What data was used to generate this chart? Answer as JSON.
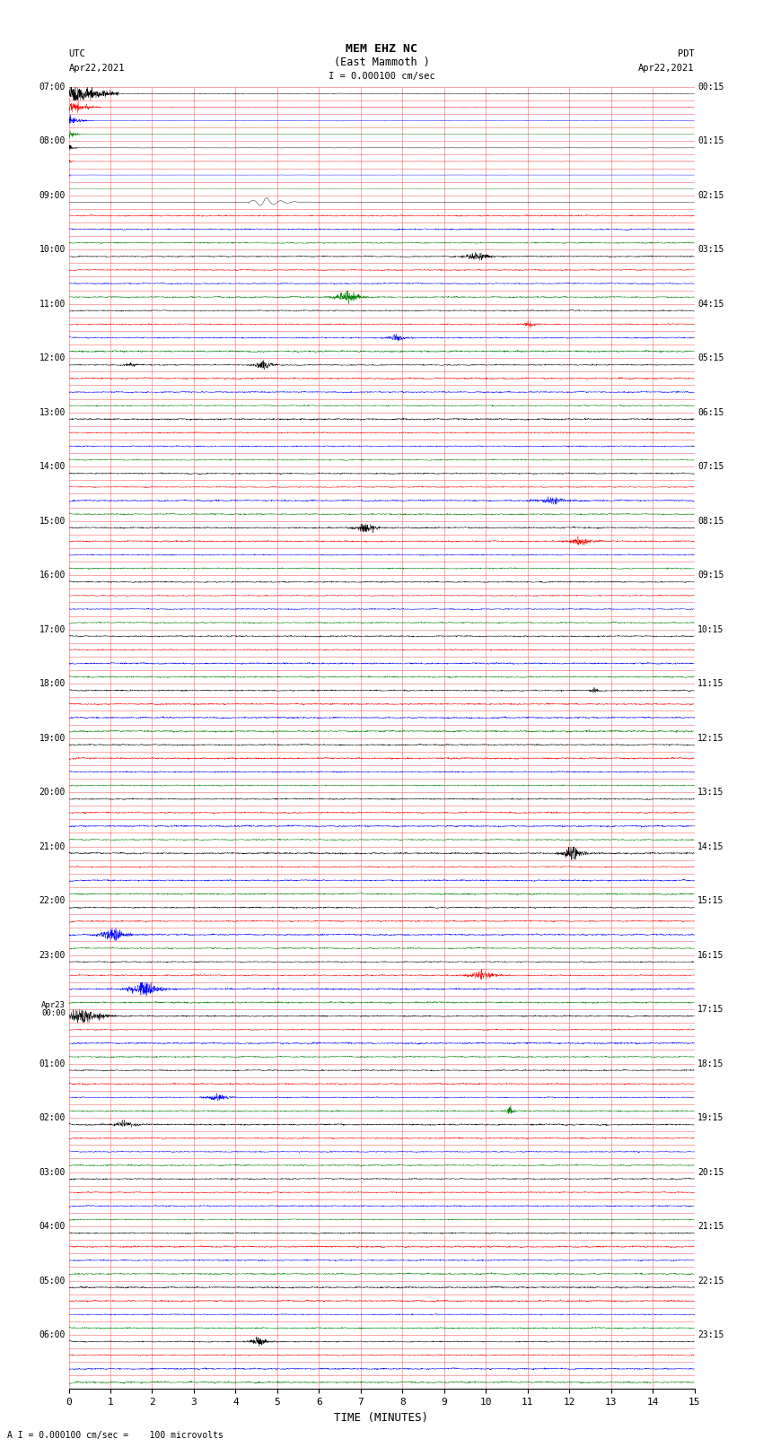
{
  "title_line1": "MEM EHZ NC",
  "title_line2": "(East Mammoth )",
  "scale_label": "I = 0.000100 cm/sec",
  "bottom_label": "A I = 0.000100 cm/sec =    100 microvolts",
  "xlabel": "TIME (MINUTES)",
  "utc_header1": "UTC",
  "utc_header2": "Apr22,2021",
  "pdt_header1": "PDT",
  "pdt_header2": "Apr22,2021",
  "num_rows": 96,
  "colors_cycle": [
    "#000000",
    "#ff0000",
    "#0000ff",
    "#008000"
  ],
  "background_color": "#ffffff",
  "grid_color": "#ff0000",
  "figsize": [
    8.5,
    16.13
  ],
  "dpi": 100,
  "xlim": [
    0,
    15
  ],
  "xticks": [
    0,
    1,
    2,
    3,
    4,
    5,
    6,
    7,
    8,
    9,
    10,
    11,
    12,
    13,
    14,
    15
  ],
  "noise_base": 0.06,
  "left_label_rows": [
    0,
    4,
    8,
    12,
    16,
    20,
    24,
    28,
    32,
    36,
    40,
    44,
    48,
    52,
    56,
    60,
    64,
    68,
    72,
    76,
    80,
    84,
    88,
    92
  ],
  "left_label_texts": [
    "07:00",
    "08:00",
    "09:00",
    "10:00",
    "11:00",
    "12:00",
    "13:00",
    "14:00",
    "15:00",
    "16:00",
    "17:00",
    "18:00",
    "19:00",
    "20:00",
    "21:00",
    "22:00",
    "23:00",
    "Apr23\n00:00",
    "01:00",
    "02:00",
    "03:00",
    "04:00",
    "05:00",
    "06:00"
  ],
  "right_label_rows": [
    0,
    4,
    8,
    12,
    16,
    20,
    24,
    28,
    32,
    36,
    40,
    44,
    48,
    52,
    56,
    60,
    64,
    68,
    72,
    76,
    80,
    84,
    88,
    92
  ],
  "right_label_texts": [
    "00:15",
    "01:15",
    "02:15",
    "03:15",
    "04:15",
    "05:15",
    "06:15",
    "07:15",
    "08:15",
    "09:15",
    "10:15",
    "11:15",
    "12:15",
    "13:15",
    "14:15",
    "15:15",
    "16:15",
    "17:15",
    "18:15",
    "19:15",
    "20:15",
    "21:15",
    "22:15",
    "23:15"
  ]
}
